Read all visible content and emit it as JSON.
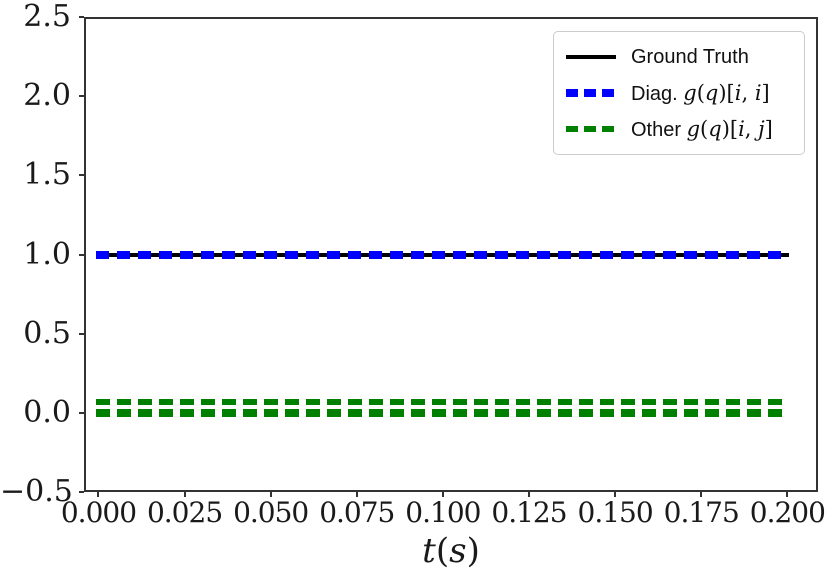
{
  "chart_data": {
    "type": "line",
    "title": "",
    "xlabel": "t(s)",
    "ylabel": "",
    "grid": false,
    "xlim": [
      -0.0042,
      0.2089
    ],
    "ylim": [
      -0.5,
      2.5
    ],
    "xticks": {
      "values": [
        0.0,
        0.025,
        0.05,
        0.075,
        0.1,
        0.125,
        0.15,
        0.175,
        0.2
      ],
      "labels": [
        "0.000",
        "0.025",
        "0.050",
        "0.075",
        "0.100",
        "0.125",
        "0.150",
        "0.175",
        "0.200"
      ]
    },
    "yticks": {
      "values": [
        2.5,
        2.0,
        1.5,
        1.0,
        0.5,
        0.0,
        -0.5
      ],
      "labels": [
        "2.5",
        "2.0",
        "1.5",
        "1.0",
        "0.5",
        "0.0",
        "−0.5"
      ]
    },
    "legend": {
      "position": "upper right"
    },
    "series": [
      {
        "name": "Ground Truth",
        "legend_text": "Ground Truth",
        "legend_math": "",
        "color": "#000000",
        "linestyle": "solid",
        "linewidth": 4,
        "dash": null,
        "x_start": 0.0,
        "x_end": 0.2,
        "lines": [
          {
            "y": 1.0,
            "linewidth": 4
          }
        ]
      },
      {
        "name": "Diag. g(q)[i, i]",
        "legend_text": "Diag. ",
        "legend_math": "g(q)[i, i]",
        "color": "#0000ff",
        "linestyle": "dashed",
        "linewidth": 8,
        "dash": [
          13,
          8
        ],
        "x_start": 0.0,
        "x_end": 0.2,
        "lines": [
          {
            "y": 1.0,
            "linewidth": 8
          }
        ]
      },
      {
        "name": "Other g(q)[i, j]",
        "legend_text": "Other ",
        "legend_math": "g(q)[i, j]",
        "color": "#008000",
        "linestyle": "dashed",
        "linewidth": 6,
        "dash": [
          14,
          7
        ],
        "x_start": 0.0,
        "x_end": 0.2,
        "lines": [
          {
            "y": 0.07,
            "linewidth": 6
          },
          {
            "y": 0.0,
            "linewidth": 8
          }
        ]
      }
    ]
  }
}
